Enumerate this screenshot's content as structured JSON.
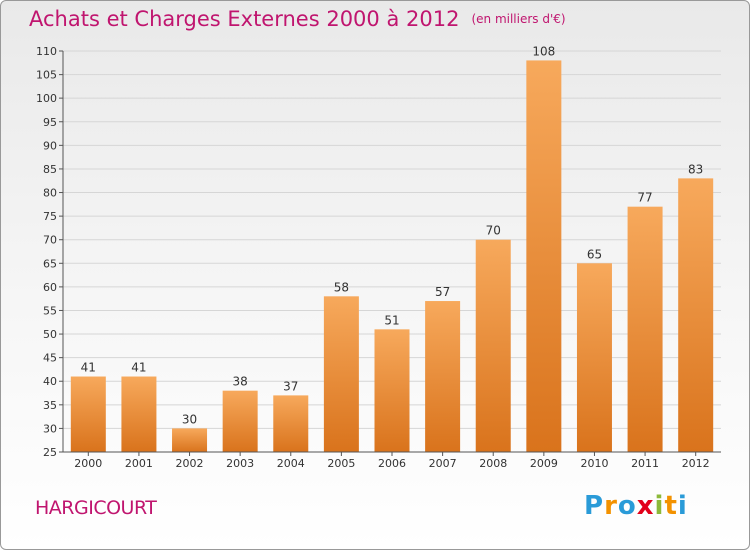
{
  "title": "Achats et Charges Externes 2000 à 2012",
  "subtitle": "(en milliers d'€)",
  "place": "HARGICOURT",
  "logo": {
    "letters": [
      "P",
      "r",
      "o",
      "x",
      "i",
      "t",
      "i"
    ],
    "colors": [
      "#2a9bd8",
      "#f39200",
      "#2a9bd8",
      "#e2001a",
      "#8cb93a",
      "#f39200",
      "#2a9bd8"
    ]
  },
  "colors": {
    "title": "#c0156f",
    "bar_top": "#f7a95c",
    "bar_bottom": "#d9731c",
    "grid": "#d6d6d6"
  },
  "chart_data": {
    "type": "bar",
    "title": "Achats et Charges Externes 2000 à 2012",
    "subtitle": "(en milliers d'€)",
    "categories": [
      "2000",
      "2001",
      "2002",
      "2003",
      "2004",
      "2005",
      "2006",
      "2007",
      "2008",
      "2009",
      "2010",
      "2011",
      "2012"
    ],
    "values": [
      41,
      41,
      30,
      38,
      37,
      58,
      51,
      57,
      70,
      108,
      65,
      77,
      83
    ],
    "ylim": [
      25,
      110
    ],
    "yticks": [
      25,
      30,
      35,
      40,
      45,
      50,
      55,
      60,
      65,
      70,
      75,
      80,
      85,
      90,
      95,
      100,
      105,
      110
    ],
    "grid": true,
    "data_labels": true
  }
}
